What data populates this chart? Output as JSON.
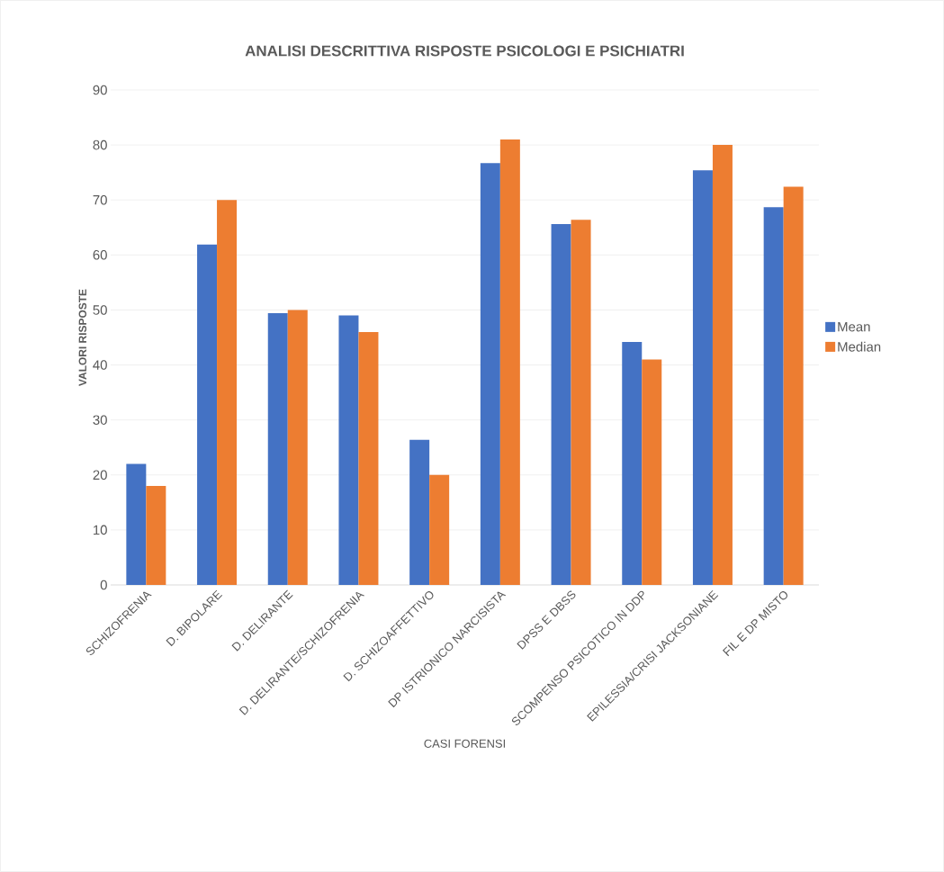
{
  "chart_data": {
    "type": "bar",
    "title": "ANALISI DESCRITTIVA RISPOSTE PSICOLOGI E PSICHIATRI",
    "xlabel": "CASI FORENSI",
    "ylabel": "VALORI RISPOSTE",
    "categories": [
      "SCHIZOFRENIA",
      "D. BIPOLARE",
      "D. DELIRANTE",
      "D. DELIRANTE/SCHIZOFRENIA",
      "D. SCHIZOAFFETTIVO",
      "DP ISTRIONICO NARCISISTA",
      "DPSS E DBSS",
      "SCOMPENSO PSICOTICO IN DDP",
      "EPILESSIA/CRISI JACKSONIANE",
      "FIL E DP MISTO"
    ],
    "series": [
      {
        "name": "Mean",
        "color": "#4472c4",
        "values": [
          22.0,
          61.9,
          49.4,
          49.0,
          26.4,
          76.7,
          65.6,
          44.2,
          75.4,
          68.7
        ]
      },
      {
        "name": "Median",
        "color": "#ed7d31",
        "values": [
          18,
          70,
          50,
          46,
          20,
          81,
          66.4,
          41,
          80,
          72.4
        ]
      }
    ],
    "ylim": [
      0,
      90
    ],
    "yticks": [
      0,
      10,
      20,
      30,
      40,
      50,
      60,
      70,
      80,
      90
    ],
    "grid": "y",
    "legend": "right"
  }
}
